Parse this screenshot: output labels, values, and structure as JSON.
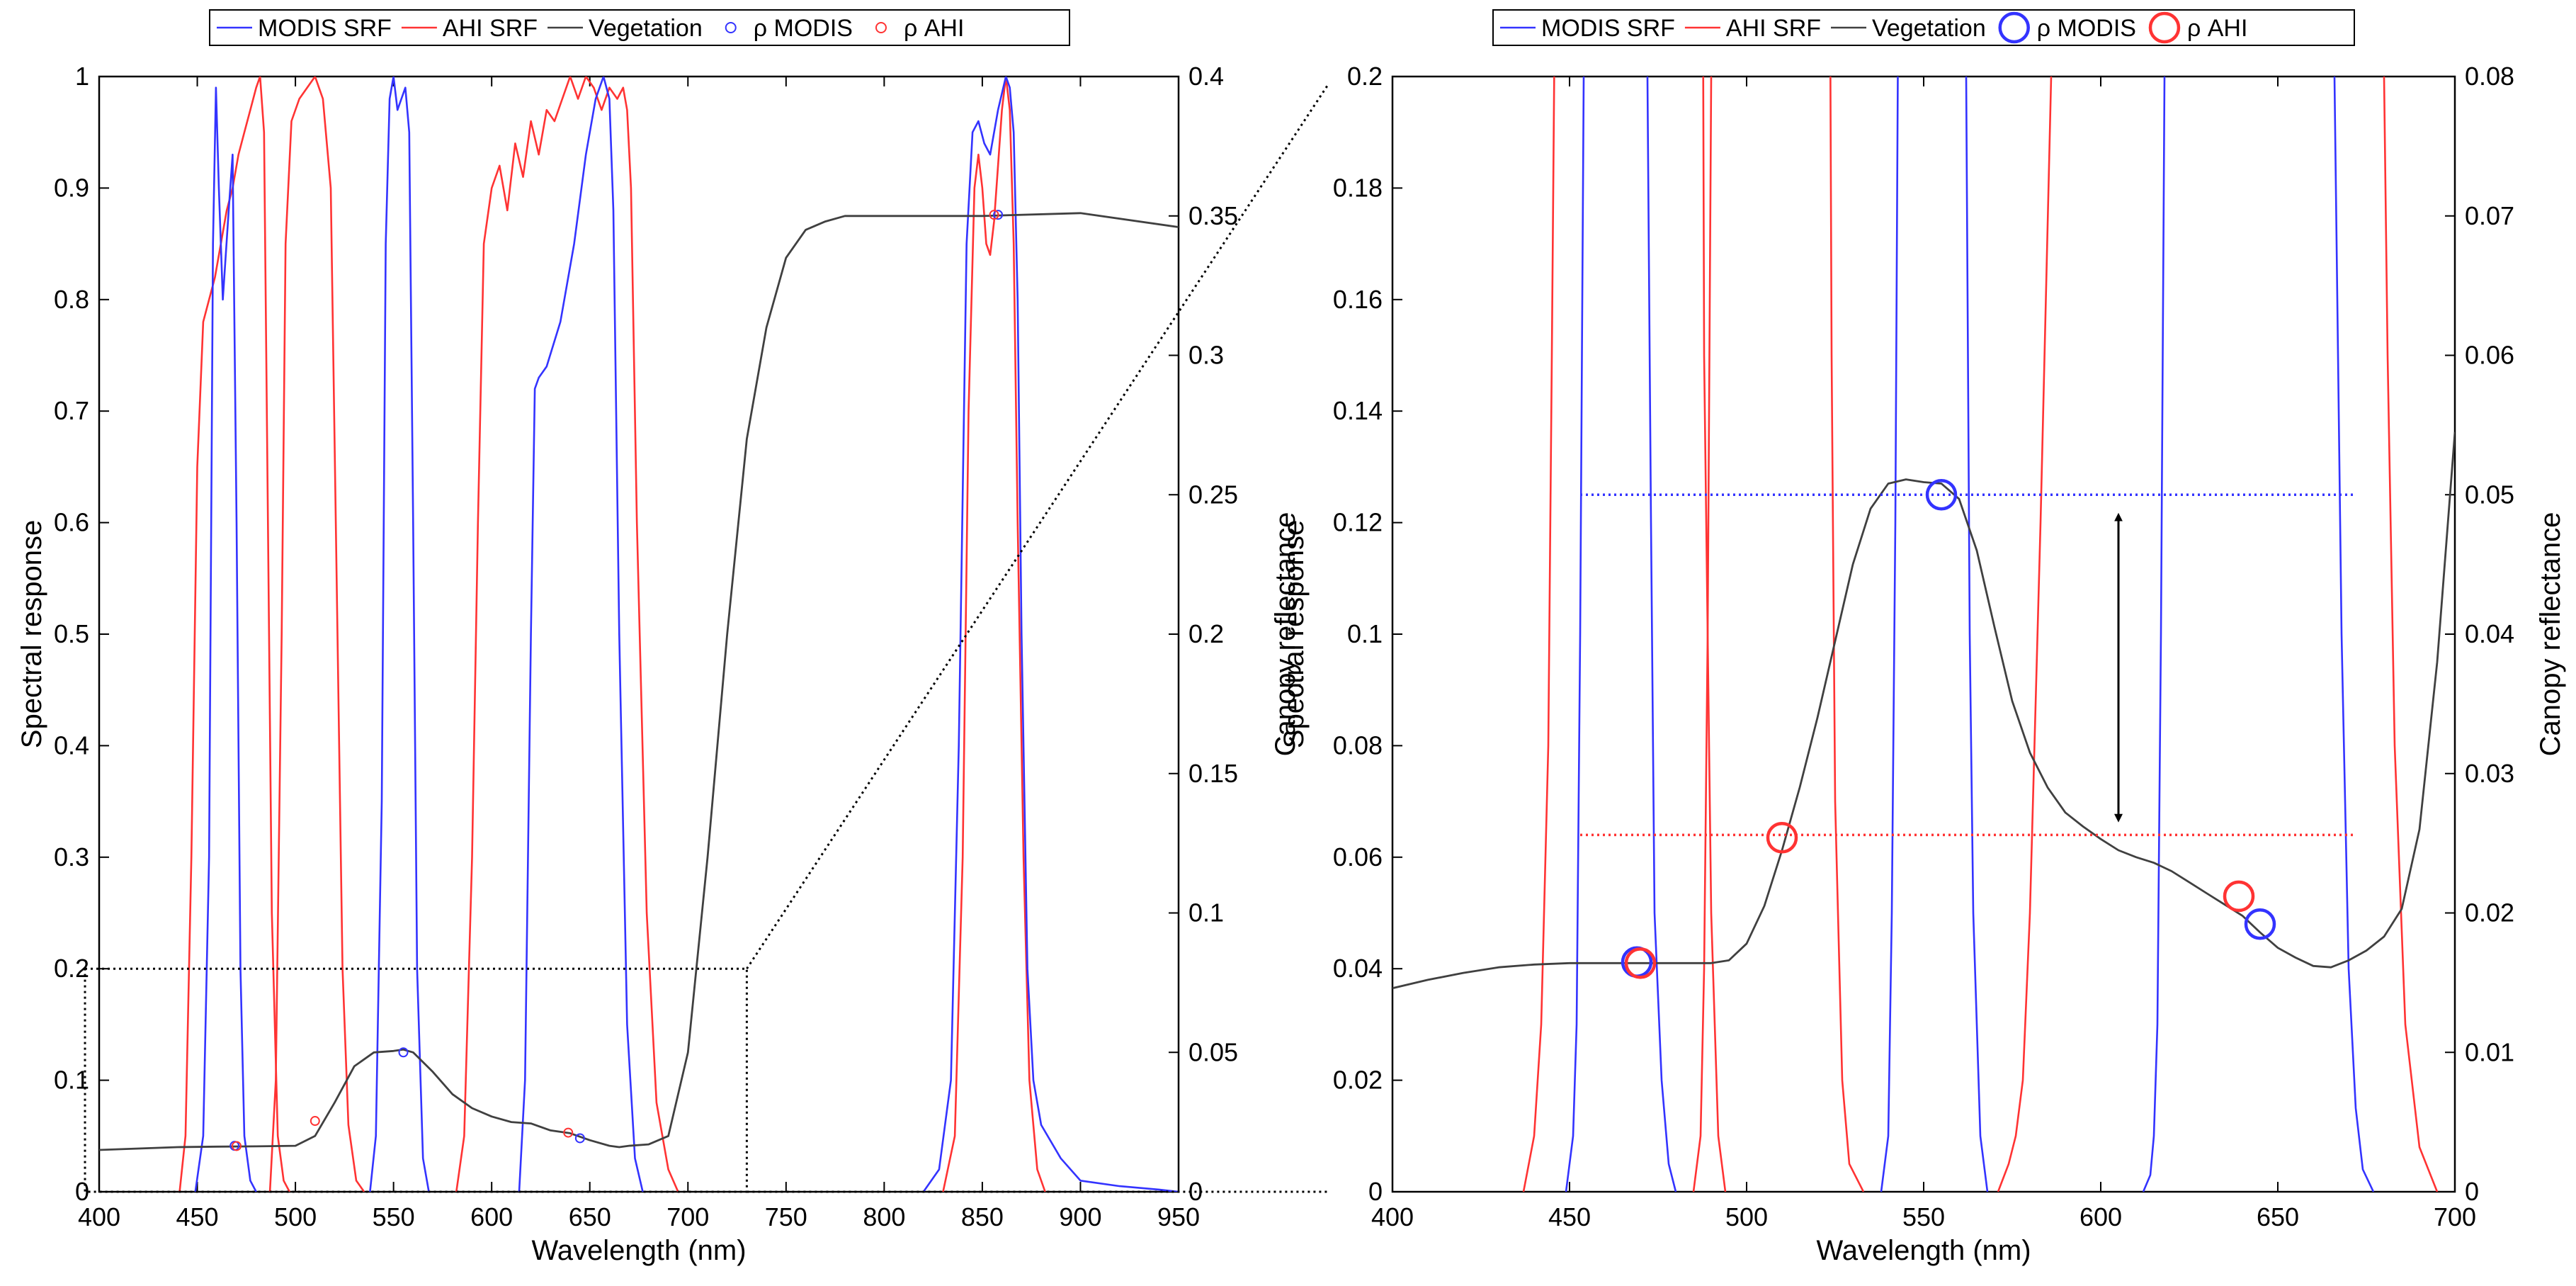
{
  "colors": {
    "modis": "#3333ff",
    "ahi": "#ff3333",
    "vegetation": "#404040",
    "guide": "#000000"
  },
  "chart_data": [
    {
      "type": "line",
      "id": "overview",
      "title": "",
      "xlabel": "Wavelength (nm)",
      "ylabel": "Spectral response",
      "y2label": "Canopy reflectance",
      "xlim": [
        400,
        950
      ],
      "ylim": [
        0,
        1
      ],
      "y2lim": [
        0,
        0.4
      ],
      "xticks": [
        "400",
        "450",
        "500",
        "550",
        "600",
        "650",
        "700",
        "750",
        "800",
        "850",
        "900",
        "950"
      ],
      "yticks": [
        "0",
        "0.1",
        "0.2",
        "0.3",
        "0.4",
        "0.5",
        "0.6",
        "0.7",
        "0.8",
        "0.9",
        "1"
      ],
      "y2ticks": [
        "0",
        "0.05",
        "0.1",
        "0.15",
        "0.2",
        "0.25",
        "0.3",
        "0.35",
        "0.4"
      ],
      "legend": {
        "position": "top",
        "entries": [
          {
            "label": "MODIS SRF",
            "kind": "line",
            "series": "modis"
          },
          {
            "label": "AHI SRF",
            "kind": "line",
            "series": "ahi"
          },
          {
            "label": "Vegetation",
            "kind": "line",
            "series": "vegetation"
          },
          {
            "label": "ρ MODIS",
            "kind": "marker",
            "series": "modis"
          },
          {
            "label": "ρ AHI",
            "kind": "marker",
            "series": "ahi"
          }
        ]
      },
      "srf_modis": [
        {
          "band": "B3",
          "x": [
            449,
            453,
            456,
            458,
            459.5,
            461,
            463,
            466,
            468,
            470,
            472,
            474,
            477,
            480
          ],
          "y": [
            0,
            0.05,
            0.3,
            0.85,
            0.99,
            0.9,
            0.8,
            0.88,
            0.93,
            0.6,
            0.2,
            0.05,
            0.01,
            0
          ]
        },
        {
          "band": "B4",
          "x": [
            538,
            541,
            544,
            546,
            548,
            550,
            552,
            554,
            556,
            558,
            560,
            562,
            565,
            568
          ],
          "y": [
            0,
            0.05,
            0.35,
            0.85,
            0.98,
            1.0,
            0.97,
            0.98,
            0.99,
            0.95,
            0.6,
            0.2,
            0.03,
            0
          ]
        },
        {
          "band": "B1",
          "x": [
            614,
            617,
            620,
            622,
            624,
            628,
            635,
            642,
            648,
            653,
            657,
            660,
            662,
            665,
            669,
            673,
            677
          ],
          "y": [
            0,
            0.1,
            0.5,
            0.72,
            0.73,
            0.74,
            0.78,
            0.85,
            0.93,
            0.98,
            1.0,
            0.98,
            0.88,
            0.5,
            0.15,
            0.03,
            0
          ]
        },
        {
          "band": "B2",
          "x": [
            820,
            828,
            834,
            838,
            842,
            845,
            848,
            851,
            854,
            858,
            862,
            864,
            866,
            868,
            870,
            873,
            876,
            880,
            890,
            900,
            920,
            940,
            950
          ],
          "y": [
            0,
            0.02,
            0.1,
            0.4,
            0.85,
            0.95,
            0.96,
            0.94,
            0.93,
            0.97,
            1.0,
            0.99,
            0.95,
            0.8,
            0.5,
            0.2,
            0.1,
            0.06,
            0.03,
            0.01,
            0.005,
            0.002,
            0
          ]
        }
      ],
      "srf_ahi": [
        {
          "band": "B1",
          "x": [
            441,
            444,
            447,
            450,
            453,
            456,
            459,
            462,
            465,
            468,
            471,
            474,
            477,
            480,
            482,
            484,
            486,
            488,
            491,
            494,
            497
          ],
          "y": [
            0,
            0.05,
            0.3,
            0.65,
            0.78,
            0.8,
            0.82,
            0.85,
            0.88,
            0.9,
            0.93,
            0.95,
            0.97,
            0.99,
            1.0,
            0.95,
            0.6,
            0.25,
            0.05,
            0.01,
            0
          ]
        },
        {
          "band": "B2",
          "x": [
            487,
            490,
            493,
            495,
            498,
            502,
            506,
            510,
            514,
            518,
            521,
            524,
            527,
            531,
            535
          ],
          "y": [
            0,
            0.1,
            0.5,
            0.85,
            0.96,
            0.98,
            0.99,
            1.0,
            0.98,
            0.9,
            0.55,
            0.2,
            0.06,
            0.01,
            0
          ]
        },
        {
          "band": "B3",
          "x": [
            582,
            586,
            590,
            593,
            596,
            600,
            604,
            608,
            612,
            616,
            620,
            624,
            628,
            632,
            636,
            640,
            644,
            648,
            652,
            656,
            660,
            664,
            667,
            669,
            671,
            674,
            679,
            684,
            690,
            695
          ],
          "y": [
            0,
            0.05,
            0.3,
            0.6,
            0.85,
            0.9,
            0.92,
            0.88,
            0.94,
            0.91,
            0.96,
            0.93,
            0.97,
            0.96,
            0.98,
            1.0,
            0.98,
            1.0,
            0.99,
            0.97,
            0.99,
            0.98,
            0.99,
            0.97,
            0.9,
            0.6,
            0.25,
            0.08,
            0.02,
            0
          ]
        },
        {
          "band": "B4",
          "x": [
            830,
            836,
            840,
            843,
            846,
            848,
            850,
            852,
            854,
            856,
            858,
            860,
            862,
            864,
            866,
            868,
            871,
            874,
            878,
            882
          ],
          "y": [
            0,
            0.05,
            0.3,
            0.7,
            0.9,
            0.93,
            0.9,
            0.85,
            0.84,
            0.87,
            0.92,
            0.97,
            1.0,
            0.97,
            0.85,
            0.6,
            0.3,
            0.1,
            0.02,
            0
          ]
        }
      ],
      "vegetation": {
        "x": [
          400,
          420,
          440,
          460,
          480,
          500,
          510,
          520,
          530,
          540,
          550,
          555,
          560,
          570,
          580,
          590,
          600,
          610,
          620,
          630,
          640,
          650,
          660,
          665,
          670,
          680,
          690,
          700,
          710,
          720,
          730,
          740,
          750,
          760,
          770,
          780,
          800,
          850,
          900,
          950
        ],
        "y": [
          0.015,
          0.0155,
          0.016,
          0.0162,
          0.0163,
          0.0165,
          0.02,
          0.032,
          0.045,
          0.05,
          0.0505,
          0.051,
          0.05,
          0.043,
          0.035,
          0.03,
          0.027,
          0.025,
          0.0245,
          0.022,
          0.021,
          0.0185,
          0.0165,
          0.016,
          0.0165,
          0.017,
          0.02,
          0.05,
          0.12,
          0.2,
          0.27,
          0.31,
          0.335,
          0.345,
          0.348,
          0.35,
          0.35,
          0.35,
          0.351,
          0.346
        ]
      },
      "rho_modis": {
        "x": [
          469,
          555,
          645,
          858
        ],
        "y": [
          0.0412,
          0.125,
          0.048,
          0.876
        ]
      },
      "rho_ahi": {
        "x": [
          470,
          510,
          639,
          856
        ],
        "y": [
          0.041,
          0.0635,
          0.053,
          0.876
        ]
      },
      "inset_box": {
        "xlim": [
          400,
          730
        ],
        "ylim": [
          0,
          0.2
        ]
      }
    },
    {
      "type": "line",
      "id": "zoom",
      "title": "",
      "xlabel": "Wavelength (nm)",
      "ylabel": "Spectral response",
      "y2label": "Canopy reflectance",
      "xlim": [
        400,
        700
      ],
      "ylim": [
        0,
        0.2
      ],
      "y2lim": [
        0,
        0.08
      ],
      "xticks": [
        "400",
        "450",
        "500",
        "550",
        "600",
        "650",
        "700"
      ],
      "yticks": [
        "0",
        "0.02",
        "0.04",
        "0.06",
        "0.08",
        "0.1",
        "0.12",
        "0.14",
        "0.16",
        "0.18",
        "0.2"
      ],
      "y2ticks": [
        "0",
        "0.01",
        "0.02",
        "0.03",
        "0.04",
        "0.05",
        "0.06",
        "0.07",
        "0.08"
      ],
      "legend": {
        "position": "top",
        "entries": [
          {
            "label": "MODIS SRF",
            "kind": "line",
            "series": "modis"
          },
          {
            "label": "AHI SRF",
            "kind": "line",
            "series": "ahi"
          },
          {
            "label": "Vegetation",
            "kind": "line",
            "series": "vegetation"
          },
          {
            "label": "ρ MODIS",
            "kind": "marker",
            "series": "modis"
          },
          {
            "label": "ρ AHI",
            "kind": "marker",
            "series": "ahi"
          }
        ]
      },
      "srf_modis": [
        {
          "band": "B3",
          "x": [
            449,
            451,
            452,
            453,
            454,
            456,
            470,
            472,
            473,
            474,
            476,
            478,
            480
          ],
          "y": [
            0,
            0.01,
            0.03,
            0.1,
            0.2,
            0.3,
            0.6,
            0.2,
            0.12,
            0.05,
            0.02,
            0.005,
            0
          ]
        },
        {
          "band": "B4",
          "x": [
            538,
            540,
            541,
            542,
            544,
            558,
            562,
            563,
            564,
            566,
            568
          ],
          "y": [
            0,
            0.01,
            0.05,
            0.12,
            0.35,
            0.95,
            0.2,
            0.1,
            0.05,
            0.01,
            0
          ]
        },
        {
          "band": "B1",
          "x": [
            612,
            614,
            615,
            616,
            617,
            618,
            620,
            660,
            665,
            666,
            668,
            670,
            672,
            674,
            677
          ],
          "y": [
            0,
            0.003,
            0.01,
            0.03,
            0.1,
            0.2,
            0.5,
            0.98,
            0.5,
            0.2,
            0.1,
            0.04,
            0.015,
            0.004,
            0
          ]
        }
      ],
      "srf_ahi": [
        {
          "band": "B1",
          "x": [
            437,
            440,
            442,
            444,
            445,
            447,
            484,
            486,
            487,
            488,
            490,
            492,
            494
          ],
          "y": [
            0,
            0.01,
            0.03,
            0.08,
            0.15,
            0.3,
            0.95,
            0.6,
            0.35,
            0.15,
            0.05,
            0.01,
            0
          ]
        },
        {
          "band": "B2",
          "x": [
            485,
            487,
            488,
            489,
            490,
            493,
            521,
            523,
            524,
            525,
            527,
            529,
            533
          ],
          "y": [
            0,
            0.01,
            0.04,
            0.1,
            0.2,
            0.5,
            0.55,
            0.3,
            0.15,
            0.07,
            0.02,
            0.005,
            0
          ]
        },
        {
          "band": "B3",
          "x": [
            571,
            574,
            576,
            578,
            580,
            583,
            586,
            590,
            675,
            679,
            681,
            683,
            686,
            690,
            695
          ],
          "y": [
            0,
            0.005,
            0.01,
            0.02,
            0.05,
            0.12,
            0.2,
            0.4,
            0.5,
            0.25,
            0.15,
            0.08,
            0.03,
            0.008,
            0
          ]
        }
      ],
      "vegetation": {
        "x": [
          400,
          410,
          420,
          430,
          440,
          450,
          460,
          470,
          480,
          490,
          495,
          500,
          505,
          510,
          515,
          520,
          525,
          530,
          535,
          540,
          545,
          550,
          555,
          560,
          565,
          570,
          575,
          580,
          585,
          590,
          595,
          600,
          605,
          610,
          615,
          620,
          625,
          630,
          635,
          640,
          645,
          650,
          655,
          660,
          665,
          670,
          675,
          680,
          685,
          690,
          695,
          700
        ],
        "y": [
          0.0146,
          0.0152,
          0.0157,
          0.0161,
          0.0163,
          0.0164,
          0.0164,
          0.0164,
          0.0164,
          0.0164,
          0.0166,
          0.0178,
          0.0205,
          0.0245,
          0.029,
          0.034,
          0.0395,
          0.045,
          0.049,
          0.0508,
          0.0511,
          0.0509,
          0.0508,
          0.0497,
          0.046,
          0.0405,
          0.0352,
          0.0315,
          0.029,
          0.0272,
          0.0262,
          0.0253,
          0.0245,
          0.024,
          0.0236,
          0.023,
          0.0222,
          0.0214,
          0.0206,
          0.0198,
          0.0186,
          0.0175,
          0.0168,
          0.0162,
          0.0161,
          0.0166,
          0.0173,
          0.0183,
          0.0203,
          0.026,
          0.038,
          0.0545
        ]
      },
      "rho_modis": {
        "x": [
          469,
          555,
          645
        ],
        "y": [
          0.0412,
          0.125,
          0.048
        ]
      },
      "rho_ahi": {
        "x": [
          470,
          510,
          639
        ],
        "y": [
          0.041,
          0.0635,
          0.053
        ]
      },
      "reference_lines": [
        {
          "series": "modis",
          "x": [
            453,
            672
          ],
          "y": 0.125
        },
        {
          "series": "ahi",
          "x": [
            453,
            672
          ],
          "y": 0.064
        }
      ],
      "arrow": {
        "x": 605,
        "y": [
          0.067,
          0.121
        ]
      }
    }
  ]
}
